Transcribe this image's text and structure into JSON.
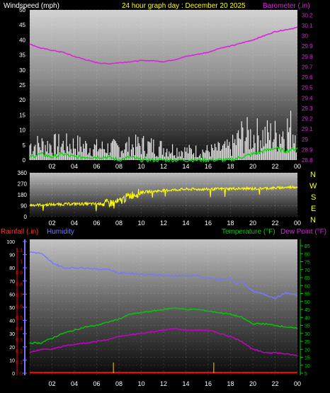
{
  "header": {
    "windspeed_label": "Windspeed (mph)",
    "graph_title": "24 hour graph day : December 20 2025",
    "barometer_label": "Barometer (.in)"
  },
  "direction_labels": [
    "N",
    "W",
    "S",
    "E",
    "N"
  ],
  "lower_header": {
    "rainfall_label": "Rainfall (.in)",
    "humidity_label": "Humidity",
    "temperature_label": "Temperature (°F)",
    "dewpoint_label": "Dew Point (°F)"
  },
  "colors": {
    "wind": "#ffffff",
    "gust": "#ffffff",
    "avg_wind": "#00dd00",
    "barometer": "#dd22dd",
    "direction": "#ffff00",
    "humidity": "#7777ff",
    "temperature": "#00cc00",
    "dewpoint": "#cc00cc",
    "rain": "#ff0000",
    "rain_tick": "#ffcc00",
    "axis_text": "#ffffff"
  },
  "chart_data": [
    {
      "type": "line",
      "name": "wind-barometer",
      "x_ticks": [
        "02",
        "04",
        "06",
        "08",
        "10",
        "12",
        "14",
        "16",
        "18",
        "20",
        "22",
        "00"
      ],
      "y_left_ticks": [
        "0",
        "5",
        "10",
        "15",
        "20",
        "25",
        "30",
        "35",
        "40",
        "45",
        "50"
      ],
      "y_right_ticks": [
        "28.8",
        "28.9",
        "29",
        "29.1",
        "29.2",
        "29.3",
        "29.4",
        "29.5",
        "29.6",
        "29.7",
        "29.8",
        "29.9",
        "30",
        "30.1",
        "30.2"
      ],
      "ylim_left": [
        0,
        50
      ],
      "ylim_right": [
        28.8,
        30.25
      ],
      "series": [
        {
          "key": "barometer",
          "axis": "right",
          "x": [
            0,
            1,
            2,
            3,
            4,
            5,
            6,
            7,
            8,
            9,
            10,
            11,
            12,
            13,
            14,
            15,
            16,
            17,
            18,
            19,
            20,
            21,
            22,
            23,
            24
          ],
          "values": [
            29.92,
            29.88,
            29.86,
            29.84,
            29.8,
            29.77,
            29.74,
            29.73,
            29.74,
            29.75,
            29.76,
            29.76,
            29.75,
            29.77,
            29.8,
            29.82,
            29.84,
            29.88,
            29.9,
            29.93,
            29.96,
            30.0,
            30.04,
            30.06,
            30.08
          ]
        },
        {
          "key": "avg_wind",
          "axis": "left",
          "x": [
            0,
            1,
            2,
            3,
            4,
            5,
            6,
            7,
            8,
            9,
            10,
            11,
            12,
            13,
            14,
            15,
            16,
            17,
            18,
            19,
            20,
            21,
            22,
            23,
            24
          ],
          "values": [
            1,
            2,
            1,
            2,
            1,
            1,
            1,
            1,
            0,
            1,
            0,
            0,
            0,
            0,
            0,
            0,
            0,
            0,
            0,
            1,
            2,
            3,
            4,
            3,
            4
          ]
        },
        {
          "key": "gust_level",
          "axis": "left",
          "x": [
            0,
            2,
            4,
            6,
            8,
            10,
            12,
            14,
            16,
            18,
            19,
            20,
            21,
            22,
            23,
            24
          ],
          "values": [
            5,
            5,
            5,
            4,
            4,
            5,
            4,
            3,
            3,
            4,
            8,
            8,
            8,
            8,
            10,
            10
          ]
        }
      ]
    },
    {
      "type": "scatter",
      "name": "wind-direction",
      "x_ticks": [
        "02",
        "04",
        "06",
        "08",
        "10",
        "12",
        "14",
        "16",
        "18",
        "20",
        "22",
        "00"
      ],
      "y_ticks": [
        "0",
        "90",
        "180",
        "270",
        "360"
      ],
      "ylim": [
        0,
        360
      ],
      "series": [
        {
          "key": "direction",
          "x": [
            0,
            2,
            4,
            6,
            7,
            8,
            8.5,
            9,
            10,
            12,
            14,
            16,
            18,
            20,
            22,
            23,
            24
          ],
          "values": [
            95,
            100,
            105,
            105,
            110,
            120,
            150,
            175,
            200,
            215,
            225,
            225,
            230,
            230,
            235,
            240,
            245
          ]
        }
      ]
    },
    {
      "type": "line",
      "name": "temp-humidity",
      "x_ticks": [
        "02",
        "04",
        "06",
        "08",
        "10",
        "12",
        "14",
        "16",
        "18",
        "20",
        "22",
        "00"
      ],
      "y_humidity_ticks": [
        "0",
        "10",
        "20",
        "30",
        "40",
        "50",
        "60",
        "70",
        "80",
        "90",
        "100"
      ],
      "y_rain_ticks": [
        "0",
        "0.1",
        "0.2",
        "0.3",
        "0.4",
        "0.5",
        "0.6",
        "0.7",
        "0.8",
        "0.9",
        "1",
        "1.1"
      ],
      "y_temp_ticks": [
        "5",
        "10",
        "15",
        "20",
        "25",
        "30",
        "35",
        "40",
        "45",
        "50",
        "55",
        "60",
        "65",
        "70",
        "75",
        "80",
        "85"
      ],
      "ylim_humidity": [
        0,
        100
      ],
      "ylim_temp": [
        5,
        85
      ],
      "series": [
        {
          "key": "humidity",
          "x": [
            0,
            1,
            2,
            3,
            4,
            5,
            6,
            7,
            8,
            9,
            10,
            11,
            12,
            13,
            14,
            15,
            16,
            17,
            18,
            18.5,
            19,
            20,
            21,
            22,
            23,
            24
          ],
          "values": [
            92,
            91,
            84,
            80,
            80,
            80,
            79,
            79,
            76,
            76,
            75,
            75,
            74,
            74,
            74,
            74,
            72,
            71,
            72,
            67,
            70,
            62,
            60,
            57,
            61,
            59
          ]
        },
        {
          "key": "temperature",
          "x": [
            0,
            1,
            2,
            3,
            4,
            5,
            6,
            7,
            8,
            9,
            10,
            11,
            12,
            13,
            14,
            15,
            16,
            17,
            18,
            19,
            20,
            21,
            22,
            23,
            24
          ],
          "values": [
            24,
            24,
            27,
            30,
            32,
            34,
            35,
            37,
            39,
            42,
            43,
            44,
            45,
            46,
            45,
            45,
            44,
            43,
            42,
            40,
            36,
            36,
            35,
            34,
            33
          ]
        },
        {
          "key": "dewpoint",
          "x": [
            0,
            1,
            2,
            3,
            4,
            5,
            6,
            7,
            8,
            9,
            10,
            11,
            12,
            13,
            14,
            15,
            16,
            17,
            18,
            19,
            20,
            21,
            22,
            23,
            24
          ],
          "values": [
            18,
            20,
            20,
            22,
            23,
            24,
            25,
            26,
            28,
            29,
            30,
            31,
            32,
            33,
            32,
            32,
            32,
            30,
            28,
            25,
            20,
            18,
            18,
            17,
            16
          ]
        },
        {
          "key": "rain",
          "x": [
            0,
            24
          ],
          "values": [
            0,
            0
          ]
        }
      ]
    }
  ]
}
